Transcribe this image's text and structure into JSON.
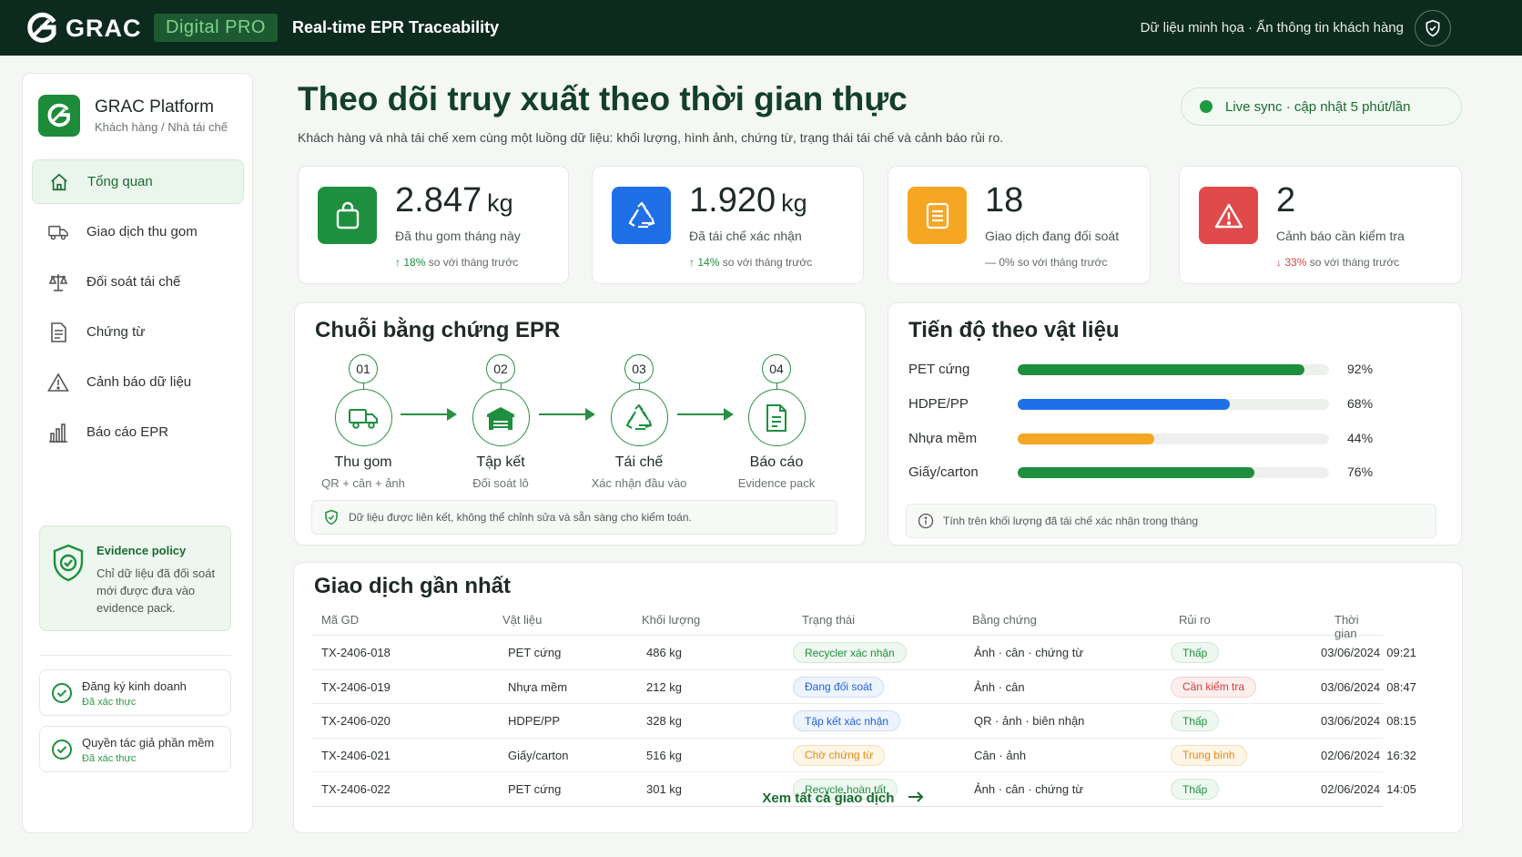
{
  "header": {
    "logo_text": "GRAC",
    "badge": "Digital PRO",
    "title": "Real-time EPR Traceability",
    "note": "Dữ liệu minh họa · Ẩn thông tin khách hàng"
  },
  "sidebar": {
    "brand_name": "GRAC Platform",
    "brand_sub": "Khách hàng / Nhà tái chế",
    "nav": [
      {
        "label": "Tổng quan",
        "icon": "home-icon"
      },
      {
        "label": "Giao dịch thu gom",
        "icon": "truck-icon"
      },
      {
        "label": "Đối soát tái chế",
        "icon": "scale-icon"
      },
      {
        "label": "Chứng từ",
        "icon": "document-icon"
      },
      {
        "label": "Cảnh báo dữ liệu",
        "icon": "warning-icon"
      },
      {
        "label": "Báo cáo EPR",
        "icon": "bar-chart-icon"
      }
    ],
    "policy": {
      "title": "Evidence policy",
      "text": "Chỉ dữ liệu đã đối soát mới được đưa vào evidence pack."
    },
    "certs": [
      {
        "name": "Đăng ký kinh doanh",
        "status": "Đã xác thực"
      },
      {
        "name": "Quyền tác giả phần mềm",
        "status": "Đã xác thực"
      }
    ]
  },
  "main": {
    "title": "Theo dõi truy xuất theo thời gian thực",
    "subtitle": "Khách hàng và nhà tái chế xem cùng một luồng dữ liệu: khối lượng, hình ảnh, chứng từ, trạng thái tái chế và cảnh báo rủi ro.",
    "live": "Live sync · cập nhật 5 phút/lần"
  },
  "kpis": [
    {
      "value": "2.847",
      "unit": "kg",
      "label": "Đã thu gom tháng này",
      "trend_sym": "↑",
      "trend_val": "18%",
      "trend_text": " so với tháng trước",
      "dir": "pos",
      "color": "#1e8f3e",
      "icon": "bag-icon"
    },
    {
      "value": "1.920",
      "unit": "kg",
      "label": "Đã tái chế xác nhận",
      "trend_sym": "↑",
      "trend_val": "14%",
      "trend_text": " so với tháng trước",
      "dir": "pos",
      "color": "#1f6fe6",
      "icon": "recycle-icon"
    },
    {
      "value": "18",
      "unit": "",
      "label": "Giao dịch đang đối soát",
      "trend_sym": "—",
      "trend_val": "0%",
      "trend_text": " so với tháng trước",
      "dir": "neutral",
      "color": "#f5a623",
      "icon": "list-icon"
    },
    {
      "value": "2",
      "unit": "",
      "label": "Cảnh báo cần kiểm tra",
      "trend_sym": "↓",
      "trend_val": "33%",
      "trend_text": " so với tháng trước",
      "dir": "neg",
      "color": "#e04a4a",
      "icon": "alert-icon"
    }
  ],
  "chain": {
    "title": "Chuỗi bằng chứng EPR",
    "steps": [
      {
        "num": "01",
        "name": "Thu gom",
        "desc": "QR + cân + ảnh",
        "icon": "truck-icon"
      },
      {
        "num": "02",
        "name": "Tập kết",
        "desc": "Đối soát lô",
        "icon": "warehouse-icon"
      },
      {
        "num": "03",
        "name": "Tái chế",
        "desc": "Xác nhận đầu vào",
        "icon": "recycle-icon"
      },
      {
        "num": "04",
        "name": "Báo cáo",
        "desc": "Evidence pack",
        "icon": "report-icon"
      }
    ],
    "note": "Dữ liệu được liên kết, không thể chỉnh sửa và sẵn sàng cho kiểm toán."
  },
  "progress": {
    "title": "Tiến độ theo vật liệu",
    "items": [
      {
        "label": "PET cứng",
        "value": 92,
        "display": "92%",
        "color": "#1e8f3e"
      },
      {
        "label": "HDPE/PP",
        "value": 68,
        "display": "68%",
        "color": "#1f6fe6"
      },
      {
        "label": "Nhựa mềm",
        "value": 44,
        "display": "44%",
        "color": "#f5a623"
      },
      {
        "label": "Giấy/carton",
        "value": 76,
        "display": "76%",
        "color": "#1e8f3e"
      }
    ],
    "note": "Tính trên khối lượng đã tái chế xác nhận trong tháng"
  },
  "transactions": {
    "title": "Giao dịch gần nhất",
    "columns": [
      "Mã GD",
      "Vật liệu",
      "Khối lượng",
      "Trạng thái",
      "Bằng chứng",
      "Rủi ro",
      "Thời gian"
    ],
    "rows": [
      {
        "id": "TX-2406-018",
        "material": "PET cứng",
        "weight": "486 kg",
        "status": "Recycler xác nhận",
        "status_tone": "green",
        "evidence": "Ảnh · cân · chứng từ",
        "risk": "Thấp",
        "risk_tone": "green",
        "time": "03/06/2024  09:21"
      },
      {
        "id": "TX-2406-019",
        "material": "Nhựa mềm",
        "weight": "212 kg",
        "status": "Đang đối soát",
        "status_tone": "blue",
        "evidence": "Ảnh · cân",
        "risk": "Cần kiểm tra",
        "risk_tone": "red",
        "time": "03/06/2024  08:47"
      },
      {
        "id": "TX-2406-020",
        "material": "HDPE/PP",
        "weight": "328 kg",
        "status": "Tập kết xác nhận",
        "status_tone": "blue",
        "evidence": "QR · ảnh · biên nhận",
        "risk": "Thấp",
        "risk_tone": "green",
        "time": "03/06/2024  08:15"
      },
      {
        "id": "TX-2406-021",
        "material": "Giấy/carton",
        "weight": "516 kg",
        "status": "Chờ chứng từ",
        "status_tone": "orange",
        "evidence": "Cân · ảnh",
        "risk": "Trung bình",
        "risk_tone": "orange",
        "time": "02/06/2024  16:32"
      },
      {
        "id": "TX-2406-022",
        "material": "PET cứng",
        "weight": "301 kg",
        "status": "Recycle hoàn tất",
        "status_tone": "green",
        "evidence": "Ảnh · cân · chứng từ",
        "risk": "Thấp",
        "risk_tone": "green",
        "time": "02/06/2024  14:05"
      }
    ],
    "view_all": "Xem tất cả giao dịch"
  }
}
